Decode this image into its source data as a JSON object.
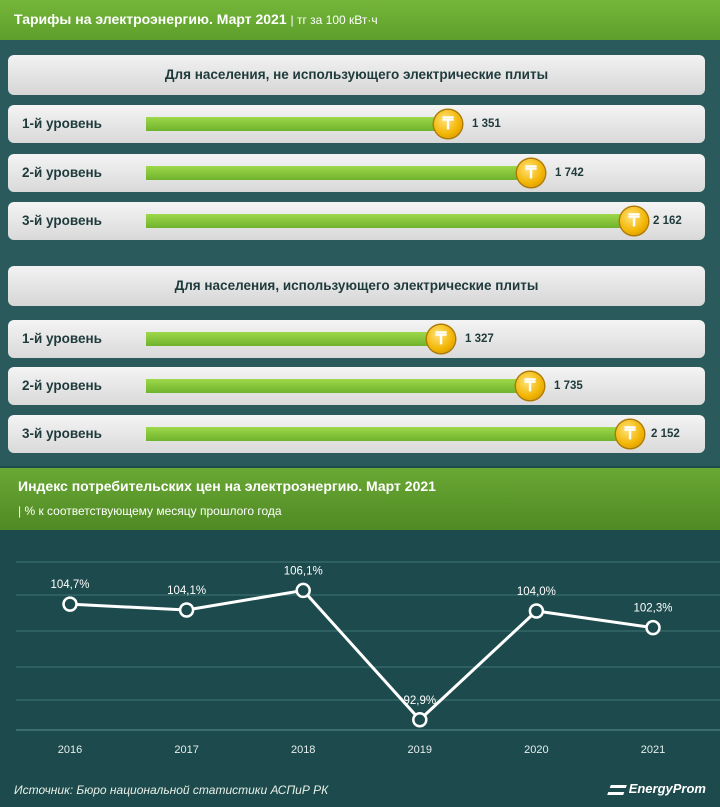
{
  "header": {
    "title": "Тарифы на электроэнергию. Март 2021",
    "unit": "| тг за 100 кВт·ч"
  },
  "groups": [
    {
      "title": "Для населения, не использующего электрические плиты",
      "rows": [
        {
          "label": "1-й уровень",
          "value": 1351,
          "value_text": "1 351"
        },
        {
          "label": "2-й уровень",
          "value": 1742,
          "value_text": "1 742"
        },
        {
          "label": "3-й уровень",
          "value": 2162,
          "value_text": "2 162"
        }
      ]
    },
    {
      "title": "Для населения, использующего электрические плиты",
      "rows": [
        {
          "label": "1-й уровень",
          "value": 1327,
          "value_text": "1 327"
        },
        {
          "label": "2-й уровень",
          "value": 1735,
          "value_text": "1 735"
        },
        {
          "label": "3-й уровень",
          "value": 2152,
          "value_text": "2 152"
        }
      ]
    }
  ],
  "coin_symbol": "₸",
  "cpi": {
    "title": "Индекс потребительских цен на электроэнергию. Март 2021",
    "subtitle": "| % к соответствующему месяцу прошлого года"
  },
  "chart_data": {
    "type": "line",
    "title": "Индекс потребительских цен на электроэнергию. Март 2021",
    "x": [
      "2016",
      "2017",
      "2018",
      "2019",
      "2020",
      "2021"
    ],
    "series": [
      {
        "values": [
          104.7,
          104.1,
          106.1,
          92.9,
          104.0,
          102.3
        ]
      }
    ],
    "labels": [
      "104,7%",
      "104,1%",
      "106,1%",
      "92,9%",
      "104,0%",
      "102,3%"
    ],
    "ylim": [
      90,
      110
    ],
    "grid": true,
    "colors": {
      "line": "#ffffff",
      "grid": "#3f7577",
      "background": "#1d4a4c"
    }
  },
  "footer": {
    "source": "Источник: Бюро национальной статистики АСПиР РК",
    "brand": "EnergyProm"
  }
}
